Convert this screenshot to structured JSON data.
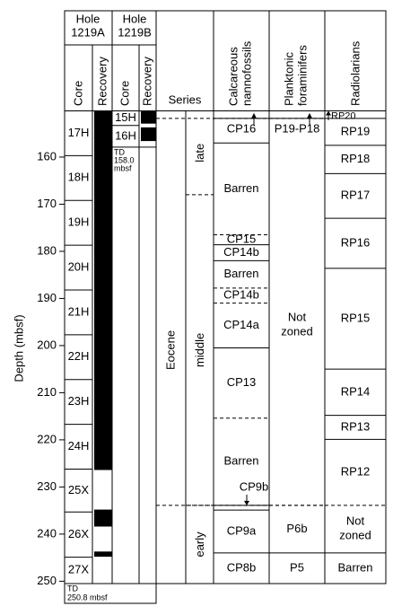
{
  "header": {
    "hole_a": [
      "Hole",
      "1219A"
    ],
    "hole_b": [
      "Hole",
      "1219B"
    ],
    "core_a": "Core",
    "recovery_a": "Recovery",
    "core_b": "Core",
    "recovery_b": "Recovery",
    "series": "Series",
    "nannofossils": [
      "Calcareous",
      "nannofossils"
    ],
    "forams": [
      "Planktonic",
      "foraminifers"
    ],
    "radiolarians": "Radiolarians"
  },
  "axis": {
    "label": "Depth (mbsf)",
    "ylim": [
      150.2,
      250.5
    ],
    "ticks": [
      160,
      170,
      180,
      190,
      200,
      210,
      220,
      230,
      240,
      250
    ]
  },
  "cores_a": [
    {
      "name": "17H",
      "top": 150.2,
      "bottom": 159.7
    },
    {
      "name": "18H",
      "top": 159.7,
      "bottom": 169.2
    },
    {
      "name": "19H",
      "top": 169.2,
      "bottom": 178.7
    },
    {
      "name": "20H",
      "top": 178.7,
      "bottom": 188.2
    },
    {
      "name": "21H",
      "top": 188.2,
      "bottom": 197.7
    },
    {
      "name": "22H",
      "top": 197.7,
      "bottom": 207.2
    },
    {
      "name": "23H",
      "top": 207.2,
      "bottom": 216.7
    },
    {
      "name": "24H",
      "top": 216.7,
      "bottom": 226.2
    },
    {
      "name": "25X",
      "top": 226.2,
      "bottom": 235.3
    },
    {
      "name": "26X",
      "top": 235.3,
      "bottom": 244.9
    },
    {
      "name": "27X",
      "top": 244.9,
      "bottom": 250.5
    }
  ],
  "recovery_a": [
    {
      "top": 150.2,
      "bottom": 226.4
    },
    {
      "top": 234.8,
      "bottom": 238.4
    },
    {
      "top": 243.7,
      "bottom": 244.8
    }
  ],
  "cores_b": [
    {
      "name": "15H",
      "top": 150.2,
      "bottom": 153.3
    },
    {
      "name": "16H",
      "top": 153.3,
      "bottom": 157.9
    }
  ],
  "recovery_b": [
    {
      "top": 150.2,
      "bottom": 152.9
    },
    {
      "top": 153.7,
      "bottom": 156.6
    }
  ],
  "td_b": [
    "TD",
    "158.0",
    "mbsf"
  ],
  "td_a": [
    "TD",
    "250.8 mbsf"
  ],
  "series": "Eocene",
  "epochs": [
    {
      "name": "late",
      "top": 150.2,
      "bottom": 168.0
    },
    {
      "name": "middle",
      "top": 168.0,
      "bottom": 233.9,
      "top_dashed": true
    },
    {
      "name": "early",
      "top": 233.9,
      "bottom": 250.5,
      "top_dashed": true
    }
  ],
  "nannofossils": [
    {
      "name": "CP16",
      "top": 151.8,
      "bottom": 157.0,
      "arrow": "up"
    },
    {
      "name": "Barren",
      "top": 157.0,
      "bottom": 176.5
    },
    {
      "name": "CP15",
      "top": 176.5,
      "bottom": 178.6,
      "top_dashed": true
    },
    {
      "name": "CP14b",
      "top": 178.6,
      "bottom": 182.0
    },
    {
      "name": "Barren",
      "top": 182.0,
      "bottom": 187.8
    },
    {
      "name": "CP14b",
      "top": 187.8,
      "bottom": 191.0,
      "top_dashed": true
    },
    {
      "name": "CP14a",
      "top": 191.0,
      "bottom": 200.5,
      "top_dashed": true
    },
    {
      "name": "CP13",
      "top": 200.5,
      "bottom": 215.4
    },
    {
      "name": "Barren",
      "top": 215.4,
      "bottom": 233.9,
      "top_dashed": true
    },
    {
      "name": "CP9b",
      "top": 233.9,
      "bottom": 234.9,
      "label_above": true
    },
    {
      "name": "CP9a",
      "top": 234.9,
      "bottom": 244.0
    },
    {
      "name": "CP8b",
      "top": 244.0,
      "bottom": 250.5
    }
  ],
  "forams": [
    {
      "name": "P19-P18",
      "top": 151.8,
      "bottom": 157.5,
      "arrow": "up"
    },
    {
      "name": "Not zoned",
      "top": 157.5,
      "bottom": 233.9,
      "no_top_line": true
    },
    {
      "name": "P6b",
      "top": 233.9,
      "bottom": 244.0,
      "top_dashed": true
    },
    {
      "name": "P5",
      "top": 244.0,
      "bottom": 250.5
    }
  ],
  "radiolarians": [
    {
      "name": "RP20",
      "top": 150.2,
      "bottom": 151.8,
      "arrow": "up",
      "small": true
    },
    {
      "name": "RP19",
      "top": 151.8,
      "bottom": 157.5
    },
    {
      "name": "RP18",
      "top": 157.5,
      "bottom": 163.5
    },
    {
      "name": "RP17",
      "top": 163.5,
      "bottom": 173.0
    },
    {
      "name": "RP16",
      "top": 173.0,
      "bottom": 183.6
    },
    {
      "name": "RP15",
      "top": 183.6,
      "bottom": 205.0
    },
    {
      "name": "RP14",
      "top": 205.0,
      "bottom": 214.8
    },
    {
      "name": "RP13",
      "top": 214.8,
      "bottom": 219.9
    },
    {
      "name": "RP12",
      "top": 219.9,
      "bottom": 233.9
    },
    {
      "name": "Not zoned",
      "top": 233.9,
      "bottom": 244.0,
      "top_dashed": true
    },
    {
      "name": "Barren",
      "top": 244.0,
      "bottom": 250.5
    }
  ],
  "dashed_levels": [
    151.8,
    233.9
  ]
}
